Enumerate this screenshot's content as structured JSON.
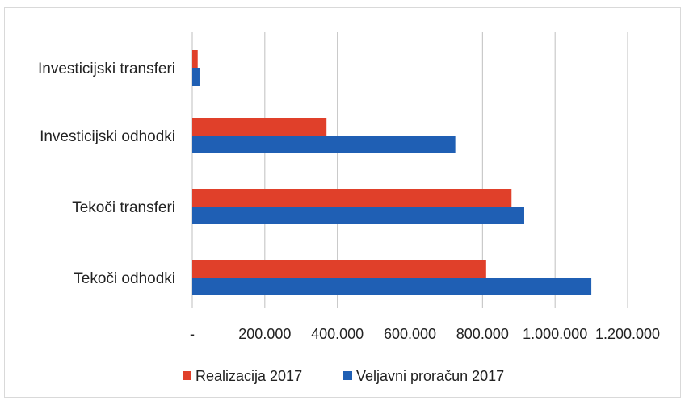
{
  "chart_data": {
    "type": "bar",
    "orientation": "horizontal",
    "categories": [
      "Investicijski transferi",
      "Investicijski odhodki",
      "Tekoči transferi",
      "Tekoči odhodki"
    ],
    "series": [
      {
        "name": "Realizacija 2017",
        "color": "#e0402a",
        "values": [
          15000,
          370000,
          880000,
          810000
        ]
      },
      {
        "name": "Veljavni proračun 2017",
        "color": "#1f5fb4",
        "values": [
          20000,
          725000,
          915000,
          1100000
        ]
      }
    ],
    "xlim": [
      0,
      1200000
    ],
    "xticks": [
      0,
      200000,
      400000,
      600000,
      800000,
      1000000,
      1200000
    ],
    "xtick_labels": [
      "-",
      "200.000",
      "400.000",
      "600.000",
      "800.000",
      "1.000.000",
      "1.200.000"
    ],
    "grid": true,
    "legend_position": "bottom",
    "title": "",
    "xlabel": "",
    "ylabel": ""
  }
}
